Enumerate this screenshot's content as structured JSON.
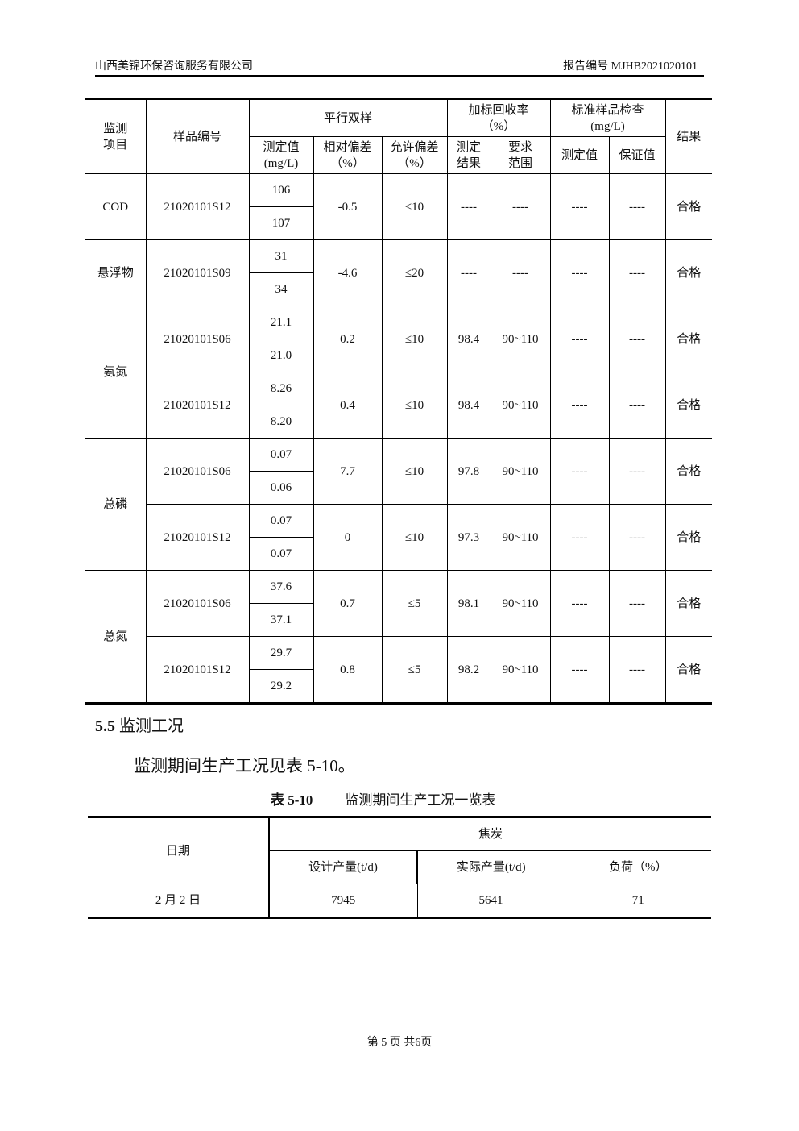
{
  "header": {
    "company": "山西美锦环保咨询服务有限公司",
    "report_no": "报告编号 MJHB2021020101"
  },
  "table1": {
    "headers": {
      "item": "监测项目",
      "sample_id": "样品编号",
      "parallel": "平行双样",
      "measured": "测定值(mg/L)",
      "rel_dev": "相对偏差（%）",
      "allow_dev": "允许偏差（%）",
      "spike": "加标回收率（%）",
      "spike_result": "测定结果",
      "spike_range": "要求范围",
      "std": "标准样品检查(mg/L)",
      "std_measured": "测定值",
      "std_guarantee": "保证值",
      "result": "结果"
    },
    "items": [
      {
        "name": "COD",
        "samples": [
          {
            "id": "21020101S12",
            "values": [
              "106",
              "107"
            ],
            "rel": "-0.5",
            "allow": "≤10",
            "spike": "----",
            "range": "----",
            "std_m": "----",
            "std_g": "----",
            "result": "合格"
          }
        ]
      },
      {
        "name": "悬浮物",
        "samples": [
          {
            "id": "21020101S09",
            "values": [
              "31",
              "34"
            ],
            "rel": "-4.6",
            "allow": "≤20",
            "spike": "----",
            "range": "----",
            "std_m": "----",
            "std_g": "----",
            "result": "合格"
          }
        ]
      },
      {
        "name": "氨氮",
        "samples": [
          {
            "id": "21020101S06",
            "values": [
              "21.1",
              "21.0"
            ],
            "rel": "0.2",
            "allow": "≤10",
            "spike": "98.4",
            "range": "90~110",
            "std_m": "----",
            "std_g": "----",
            "result": "合格"
          },
          {
            "id": "21020101S12",
            "values": [
              "8.26",
              "8.20"
            ],
            "rel": "0.4",
            "allow": "≤10",
            "spike": "98.4",
            "range": "90~110",
            "std_m": "----",
            "std_g": "----",
            "result": "合格"
          }
        ]
      },
      {
        "name": "总磷",
        "samples": [
          {
            "id": "21020101S06",
            "values": [
              "0.07",
              "0.06"
            ],
            "rel": "7.7",
            "allow": "≤10",
            "spike": "97.8",
            "range": "90~110",
            "std_m": "----",
            "std_g": "----",
            "result": "合格"
          },
          {
            "id": "21020101S12",
            "values": [
              "0.07",
              "0.07"
            ],
            "rel": "0",
            "allow": "≤10",
            "spike": "97.3",
            "range": "90~110",
            "std_m": "----",
            "std_g": "----",
            "result": "合格"
          }
        ]
      },
      {
        "name": "总氮",
        "samples": [
          {
            "id": "21020101S06",
            "values": [
              "37.6",
              "37.1"
            ],
            "rel": "0.7",
            "allow": "≤5",
            "spike": "98.1",
            "range": "90~110",
            "std_m": "----",
            "std_g": "----",
            "result": "合格"
          },
          {
            "id": "21020101S12",
            "values": [
              "29.7",
              "29.2"
            ],
            "rel": "0.8",
            "allow": "≤5",
            "spike": "98.2",
            "range": "90~110",
            "std_m": "----",
            "std_g": "----",
            "result": "合格"
          }
        ]
      }
    ]
  },
  "section": {
    "number": "5.5",
    "title": "监测工况"
  },
  "paragraph": "监测期间生产工况见表 5-10。",
  "caption": {
    "label": "表 5-10",
    "title": "监测期间生产工况一览表"
  },
  "table2": {
    "headers": {
      "date": "日期",
      "group": "焦炭",
      "design": "设计产量(t/d)",
      "actual": "实际产量(t/d)",
      "load": "负荷（%）"
    },
    "rows": [
      {
        "date": "2 月 2 日",
        "design": "7945",
        "actual": "5641",
        "load": "71"
      }
    ]
  },
  "footer": "第 5 页 共6页"
}
